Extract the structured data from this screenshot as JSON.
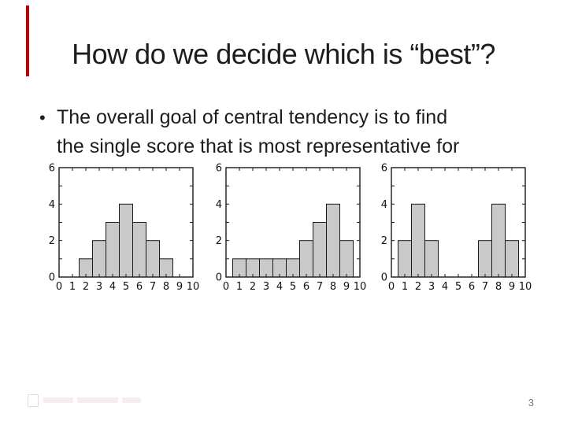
{
  "slide": {
    "title": "How do we decide which is “best”?",
    "bullet_marker": "•",
    "bullet_lines": [
      "The overall goal of central tendency is to find",
      "the single score that is most representative for"
    ],
    "page_number": "3",
    "accent_color": "#C00000",
    "background": "#FFFFFF",
    "text_color": "#1D1D1D"
  },
  "chart_data": [
    {
      "type": "bar",
      "title": "",
      "xlabel": "",
      "ylabel": "",
      "x": [
        2,
        3,
        4,
        5,
        6,
        7,
        8
      ],
      "values": [
        1,
        2,
        3,
        4,
        3,
        2,
        1
      ],
      "xlim": [
        0,
        10
      ],
      "ylim": [
        0,
        6
      ],
      "x_ticks": [
        0,
        1,
        2,
        3,
        4,
        5,
        6,
        7,
        8,
        9,
        10
      ],
      "y_ticks": [
        0,
        1,
        2,
        3,
        4,
        5,
        6
      ],
      "y_tick_labels_shown": [
        0,
        2,
        4,
        6
      ],
      "bar_width": 1,
      "bar_fill": "#C9C9C9",
      "bar_stroke": "#1A1A1A",
      "grid": false,
      "legend": false
    },
    {
      "type": "bar",
      "title": "",
      "xlabel": "",
      "ylabel": "",
      "x": [
        1,
        2,
        3,
        4,
        5,
        6,
        7,
        8,
        9
      ],
      "values": [
        1,
        1,
        1,
        1,
        1,
        2,
        3,
        4,
        2
      ],
      "xlim": [
        0,
        10
      ],
      "ylim": [
        0,
        6
      ],
      "x_ticks": [
        0,
        1,
        2,
        3,
        4,
        5,
        6,
        7,
        8,
        9,
        10
      ],
      "y_ticks": [
        0,
        1,
        2,
        3,
        4,
        5,
        6
      ],
      "y_tick_labels_shown": [
        0,
        2,
        4,
        6
      ],
      "bar_width": 1,
      "bar_fill": "#C9C9C9",
      "bar_stroke": "#1A1A1A",
      "grid": false,
      "legend": false
    },
    {
      "type": "bar",
      "title": "",
      "xlabel": "",
      "ylabel": "",
      "x": [
        1,
        2,
        3,
        7,
        8,
        9
      ],
      "values": [
        2,
        4,
        2,
        2,
        4,
        2
      ],
      "xlim": [
        0,
        10
      ],
      "ylim": [
        0,
        6
      ],
      "x_ticks": [
        0,
        1,
        2,
        3,
        4,
        5,
        6,
        7,
        8,
        9,
        10
      ],
      "y_ticks": [
        0,
        1,
        2,
        3,
        4,
        5,
        6
      ],
      "y_tick_labels_shown": [
        0,
        2,
        4,
        6
      ],
      "bar_width": 1,
      "bar_fill": "#C9C9C9",
      "bar_stroke": "#1A1A1A",
      "grid": false,
      "legend": false
    }
  ]
}
